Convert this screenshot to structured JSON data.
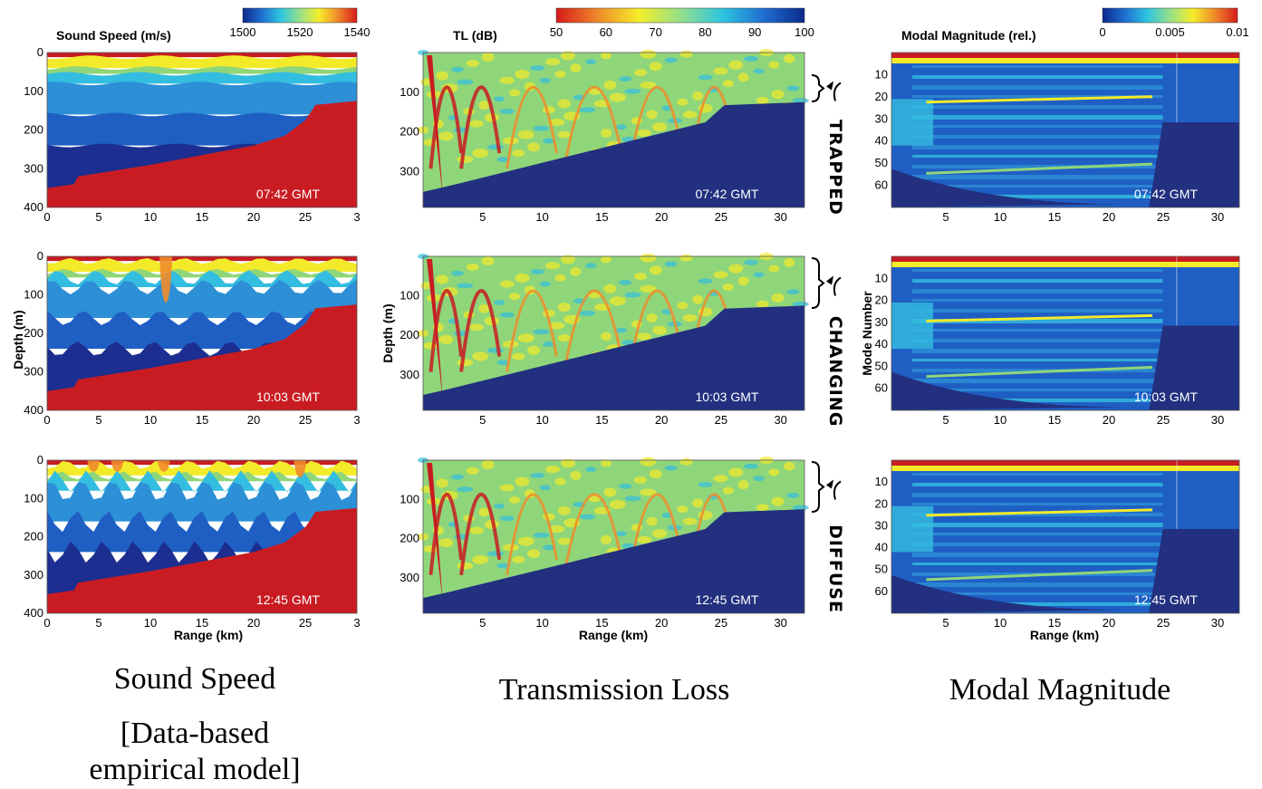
{
  "colorbars": [
    {
      "title": "Sound Speed (m/s)",
      "ticks": [
        "1500",
        "1520",
        "1540"
      ],
      "stops": [
        "#0b2a8c",
        "#1f6fd1",
        "#2ec6e0",
        "#96e08a",
        "#f5ee2a",
        "#f0892a",
        "#d51a1a"
      ]
    },
    {
      "title": "TL (dB)",
      "ticks": [
        "50",
        "60",
        "70",
        "80",
        "90",
        "100"
      ],
      "stops": [
        "#d51a1a",
        "#f0892a",
        "#f5ee2a",
        "#96e08a",
        "#2ec6e0",
        "#1f6fd1",
        "#0b2a8c"
      ]
    },
    {
      "title": "Modal Magnitude (rel.)",
      "ticks": [
        "0",
        "0.005",
        "0.01"
      ],
      "stops": [
        "#0b2a8c",
        "#1f6fd1",
        "#2ec6e0",
        "#96e08a",
        "#f5ee2a",
        "#f0892a",
        "#d51a1a"
      ]
    }
  ],
  "columns": [
    {
      "ylabel": "Depth (m)",
      "xlabel": "Range (km)",
      "xticks": [
        "0",
        "5",
        "10",
        "15",
        "20",
        "25",
        "3"
      ],
      "yticks": [
        "0",
        "100",
        "200",
        "300",
        "400"
      ],
      "caption_lines": [
        "Sound Speed",
        "[Data-based",
        "empirical model]"
      ]
    },
    {
      "ylabel": "Depth (m)",
      "xlabel": "Range (km)",
      "xticks": [
        "5",
        "10",
        "15",
        "20",
        "25",
        "30"
      ],
      "yticks": [
        "100",
        "200",
        "300"
      ],
      "caption_lines": [
        "Transmission Loss"
      ]
    },
    {
      "ylabel": "Mode Number",
      "xlabel": "Range (km)",
      "xticks": [
        "5",
        "10",
        "15",
        "20",
        "25",
        "30"
      ],
      "yticks": [
        "10",
        "20",
        "30",
        "40",
        "50",
        "60"
      ],
      "caption_lines": [
        "Modal Magnitude"
      ]
    }
  ],
  "rows": [
    {
      "time": "07:42 GMT",
      "regime": "TRAPPED"
    },
    {
      "time": "10:03 GMT",
      "regime": "CHANGING"
    },
    {
      "time": "12:45 GMT",
      "regime": "DIFFUSE"
    }
  ],
  "chart_data": [
    {
      "type": "heatmap",
      "title": "Sound Speed (m/s)",
      "xlabel": "Range (km)",
      "ylabel": "Depth (m)",
      "xlim": [
        0,
        30
      ],
      "ylim": [
        400,
        0
      ],
      "colorbar": {
        "label": "Sound Speed (m/s)",
        "range": [
          1500,
          1545
        ]
      },
      "panels": [
        "07:42 GMT",
        "10:03 GMT",
        "12:45 GMT"
      ],
      "bathymetry": {
        "range_km": [
          0,
          2.6,
          3,
          10,
          20,
          23,
          25,
          26,
          30
        ],
        "depth_m": [
          350,
          340,
          320,
          290,
          240,
          215,
          175,
          135,
          125
        ]
      },
      "layer_boundary_depths_m": [
        15,
        40,
        55,
        80,
        160,
        240
      ]
    },
    {
      "type": "heatmap",
      "title": "TL (dB)",
      "xlabel": "Range (km)",
      "ylabel": "Depth (m)",
      "xlim": [
        0,
        32
      ],
      "ylim": [
        390,
        0
      ],
      "colorbar": {
        "label": "TL (dB)",
        "range": [
          50,
          100
        ]
      },
      "panels": [
        "07:42 GMT",
        "10:03 GMT",
        "12:45 GMT"
      ],
      "annotations": [
        "TRAPPED",
        "CHANGING",
        "DIFFUSE"
      ]
    },
    {
      "type": "heatmap",
      "title": "Modal Magnitude (rel.)",
      "xlabel": "Range (km)",
      "ylabel": "Mode Number",
      "xlim": [
        0,
        32
      ],
      "ylim": [
        70,
        0
      ],
      "colorbar": {
        "label": "Modal Magnitude (rel.)",
        "range": [
          0,
          0.01
        ]
      },
      "panels": [
        "07:42 GMT",
        "10:03 GMT",
        "12:45 GMT"
      ]
    }
  ]
}
